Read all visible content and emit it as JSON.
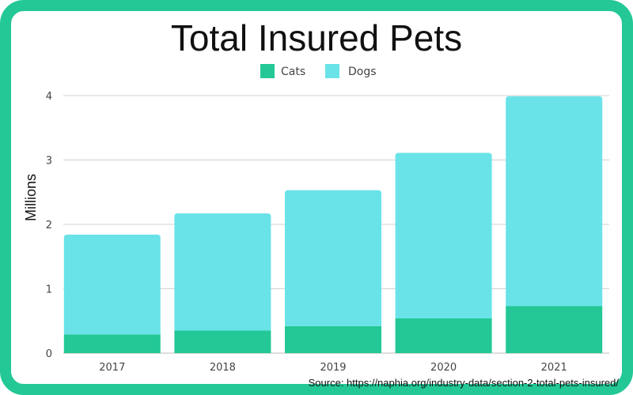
{
  "chart_data": {
    "type": "bar",
    "stacked": true,
    "title": "Total Insured Pets",
    "xlabel": "",
    "ylabel": "Millions",
    "categories": [
      "2017",
      "2018",
      "2019",
      "2020",
      "2021"
    ],
    "series": [
      {
        "name": "Cats",
        "color": "#23c896",
        "values": [
          0.29,
          0.35,
          0.42,
          0.54,
          0.73
        ]
      },
      {
        "name": "Dogs",
        "color": "#69e3e8",
        "values": [
          1.55,
          1.82,
          2.11,
          2.57,
          3.26
        ]
      }
    ],
    "ylim": [
      0,
      4
    ],
    "yticks": [
      "0",
      "1",
      "2",
      "3",
      "4"
    ],
    "grid": true,
    "legend_position": "top-center"
  },
  "source_text": "Source: https://naphia.org/industry-data/section-2-total-pets-insured/",
  "colors": {
    "frame": "#23c896",
    "gridline": "#d0d0d0"
  }
}
